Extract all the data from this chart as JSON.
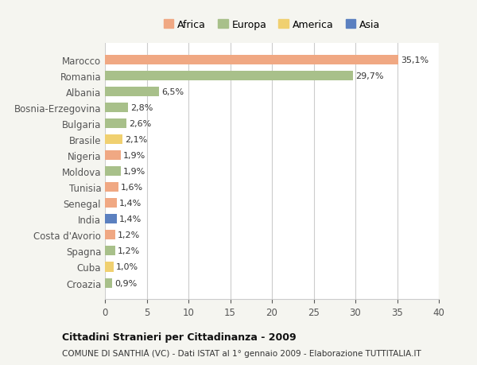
{
  "categories": [
    "Marocco",
    "Romania",
    "Albania",
    "Bosnia-Erzegovina",
    "Bulgaria",
    "Brasile",
    "Nigeria",
    "Moldova",
    "Tunisia",
    "Senegal",
    "India",
    "Costa d'Avorio",
    "Spagna",
    "Cuba",
    "Croazia"
  ],
  "values": [
    35.1,
    29.7,
    6.5,
    2.8,
    2.6,
    2.1,
    1.9,
    1.9,
    1.6,
    1.4,
    1.4,
    1.2,
    1.2,
    1.0,
    0.9
  ],
  "labels": [
    "35,1%",
    "29,7%",
    "6,5%",
    "2,8%",
    "2,6%",
    "2,1%",
    "1,9%",
    "1,9%",
    "1,6%",
    "1,4%",
    "1,4%",
    "1,2%",
    "1,2%",
    "1,0%",
    "0,9%"
  ],
  "colors": [
    "#F0A883",
    "#A8C08A",
    "#A8C08A",
    "#A8C08A",
    "#A8C08A",
    "#F0D070",
    "#F0A883",
    "#A8C08A",
    "#F0A883",
    "#F0A883",
    "#5B80C0",
    "#F0A883",
    "#A8C08A",
    "#F0D070",
    "#A8C08A"
  ],
  "legend_labels": [
    "Africa",
    "Europa",
    "America",
    "Asia"
  ],
  "legend_colors": [
    "#F0A883",
    "#A8C08A",
    "#F0D070",
    "#5B80C0"
  ],
  "xlim": [
    0,
    40
  ],
  "xticks": [
    0,
    5,
    10,
    15,
    20,
    25,
    30,
    35,
    40
  ],
  "title": "Cittadini Stranieri per Cittadinanza - 2009",
  "subtitle": "COMUNE DI SANTHIÀ (VC) - Dati ISTAT al 1° gennaio 2009 - Elaborazione TUTTITALIA.IT",
  "background_color": "#f5f5f0",
  "bar_background": "#ffffff",
  "grid_color": "#cccccc"
}
